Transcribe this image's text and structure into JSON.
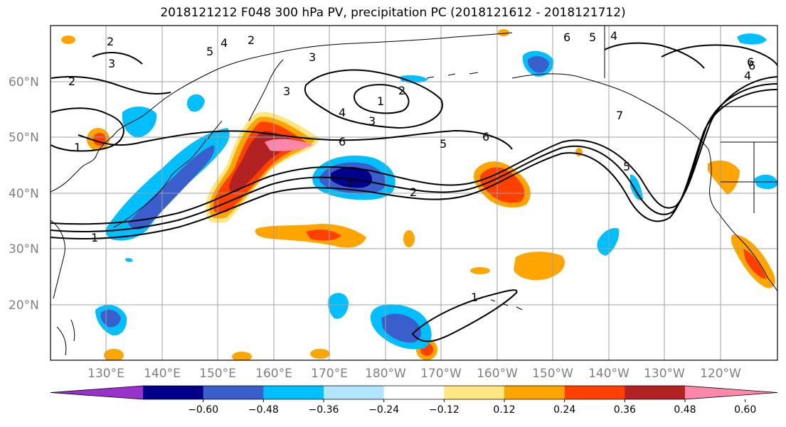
{
  "title": "2018121212 F048 300 hPa PV, precipitation PC (2018121612 - 2018121712)",
  "lat_labels": [
    "60°N",
    "50°N",
    "40°N",
    "30°N",
    "20°N"
  ],
  "lon_labels": [
    "130°E",
    "140°E",
    "150°E",
    "160°E",
    "170°E",
    "180°W",
    "170°W",
    "160°W",
    "150°W",
    "140°W",
    "130°W",
    "120°W"
  ],
  "colorbar": {
    "colors": [
      "#9932CC",
      "#00008B",
      "#3A5FCD",
      "#00BFFF",
      "#B2E5FF",
      "#FFFFFF",
      "#FFE680",
      "#FFA500",
      "#FF4000",
      "#B22222",
      "#FF88AA"
    ],
    "ticks": [
      "−0.60",
      "−0.48",
      "−0.36",
      "−0.24",
      "−0.12",
      "0.12",
      "0.24",
      "0.36",
      "0.48",
      "0.60"
    ]
  },
  "contour_labels": [
    "2",
    "3",
    "5",
    "4",
    "2",
    "3",
    "6",
    "5",
    "4",
    "6",
    "2",
    "1",
    "2",
    "3",
    "4",
    "3",
    "6",
    "7",
    "5",
    "6",
    "5",
    "1",
    "3",
    "2",
    "6",
    "4",
    "1",
    "1"
  ]
}
